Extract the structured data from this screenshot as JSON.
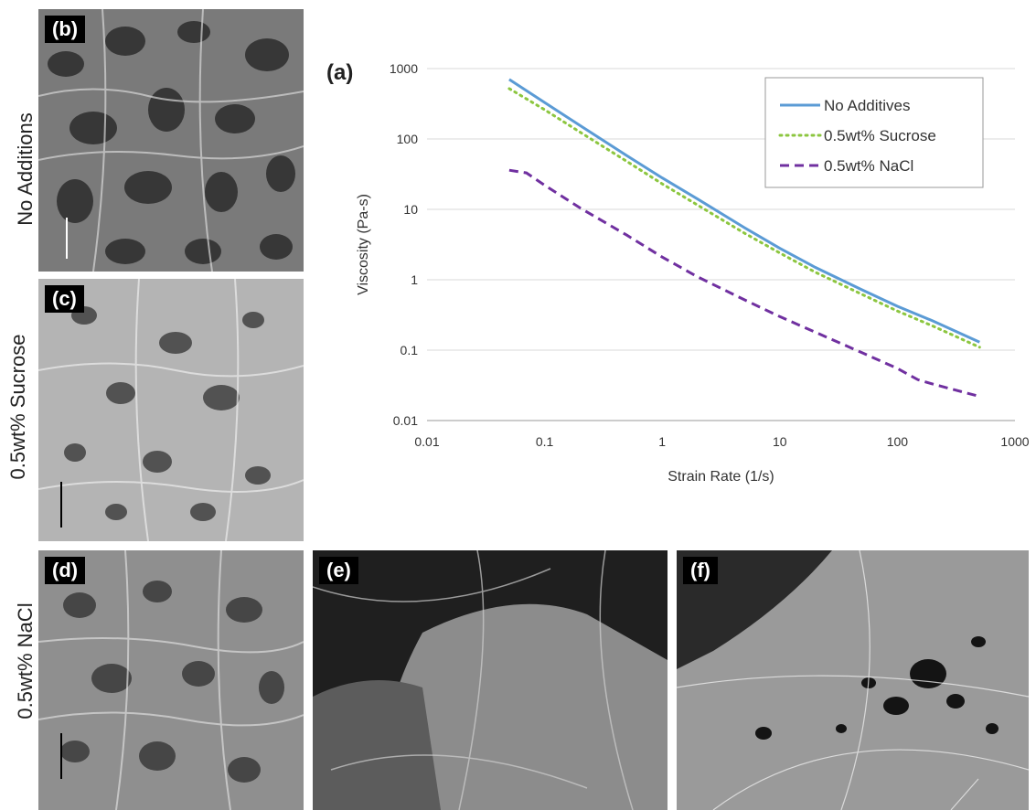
{
  "figure": {
    "row_labels": [
      "No Additions",
      "0.5wt% Sucrose",
      "0.5wt% NaCl"
    ],
    "panel_tags": {
      "a": "(a)",
      "b": "(b)",
      "c": "(c)",
      "d": "(d)",
      "e": "(e)",
      "f": "(f)"
    }
  },
  "chart_data": {
    "type": "line",
    "title": "",
    "xlabel": "Strain Rate (1/s)",
    "ylabel": "Viscosity (Pa-s)",
    "xscale": "log",
    "yscale": "log",
    "xlim": [
      0.01,
      1000
    ],
    "ylim": [
      0.01,
      1000
    ],
    "x_tick_labels": [
      "0.01",
      "0.1",
      "1",
      "10",
      "100",
      "1000"
    ],
    "y_tick_labels": [
      "0.01",
      "0.1",
      "1",
      "10",
      "100",
      "1000"
    ],
    "grid": "horizontal",
    "legend_position": "top-right",
    "series": [
      {
        "name": "No Additives",
        "color": "#5b9bd5",
        "style": "solid",
        "x": [
          0.05,
          0.1,
          0.2,
          0.5,
          1,
          2,
          5,
          10,
          20,
          50,
          100,
          200,
          500
        ],
        "y": [
          700,
          330,
          155,
          58,
          28,
          14,
          5.5,
          2.8,
          1.5,
          0.72,
          0.42,
          0.26,
          0.13
        ]
      },
      {
        "name": "0.5wt% Sucrose",
        "color": "#8cc63f",
        "style": "dotted",
        "x": [
          0.05,
          0.1,
          0.2,
          0.5,
          1,
          2,
          5,
          10,
          20,
          50,
          100,
          200,
          500
        ],
        "y": [
          520,
          260,
          125,
          48,
          23,
          11.5,
          4.6,
          2.4,
          1.28,
          0.62,
          0.36,
          0.22,
          0.11
        ]
      },
      {
        "name": "0.5wt% NaCl",
        "color": "#7030a0",
        "style": "dashed",
        "x": [
          0.05,
          0.07,
          0.1,
          0.2,
          0.5,
          1,
          2,
          5,
          10,
          20,
          50,
          100,
          150,
          200,
          500
        ],
        "y": [
          36,
          33,
          22,
          10.5,
          4.3,
          2.1,
          1.1,
          0.52,
          0.3,
          0.18,
          0.092,
          0.055,
          0.038,
          0.033,
          0.022
        ]
      }
    ]
  }
}
